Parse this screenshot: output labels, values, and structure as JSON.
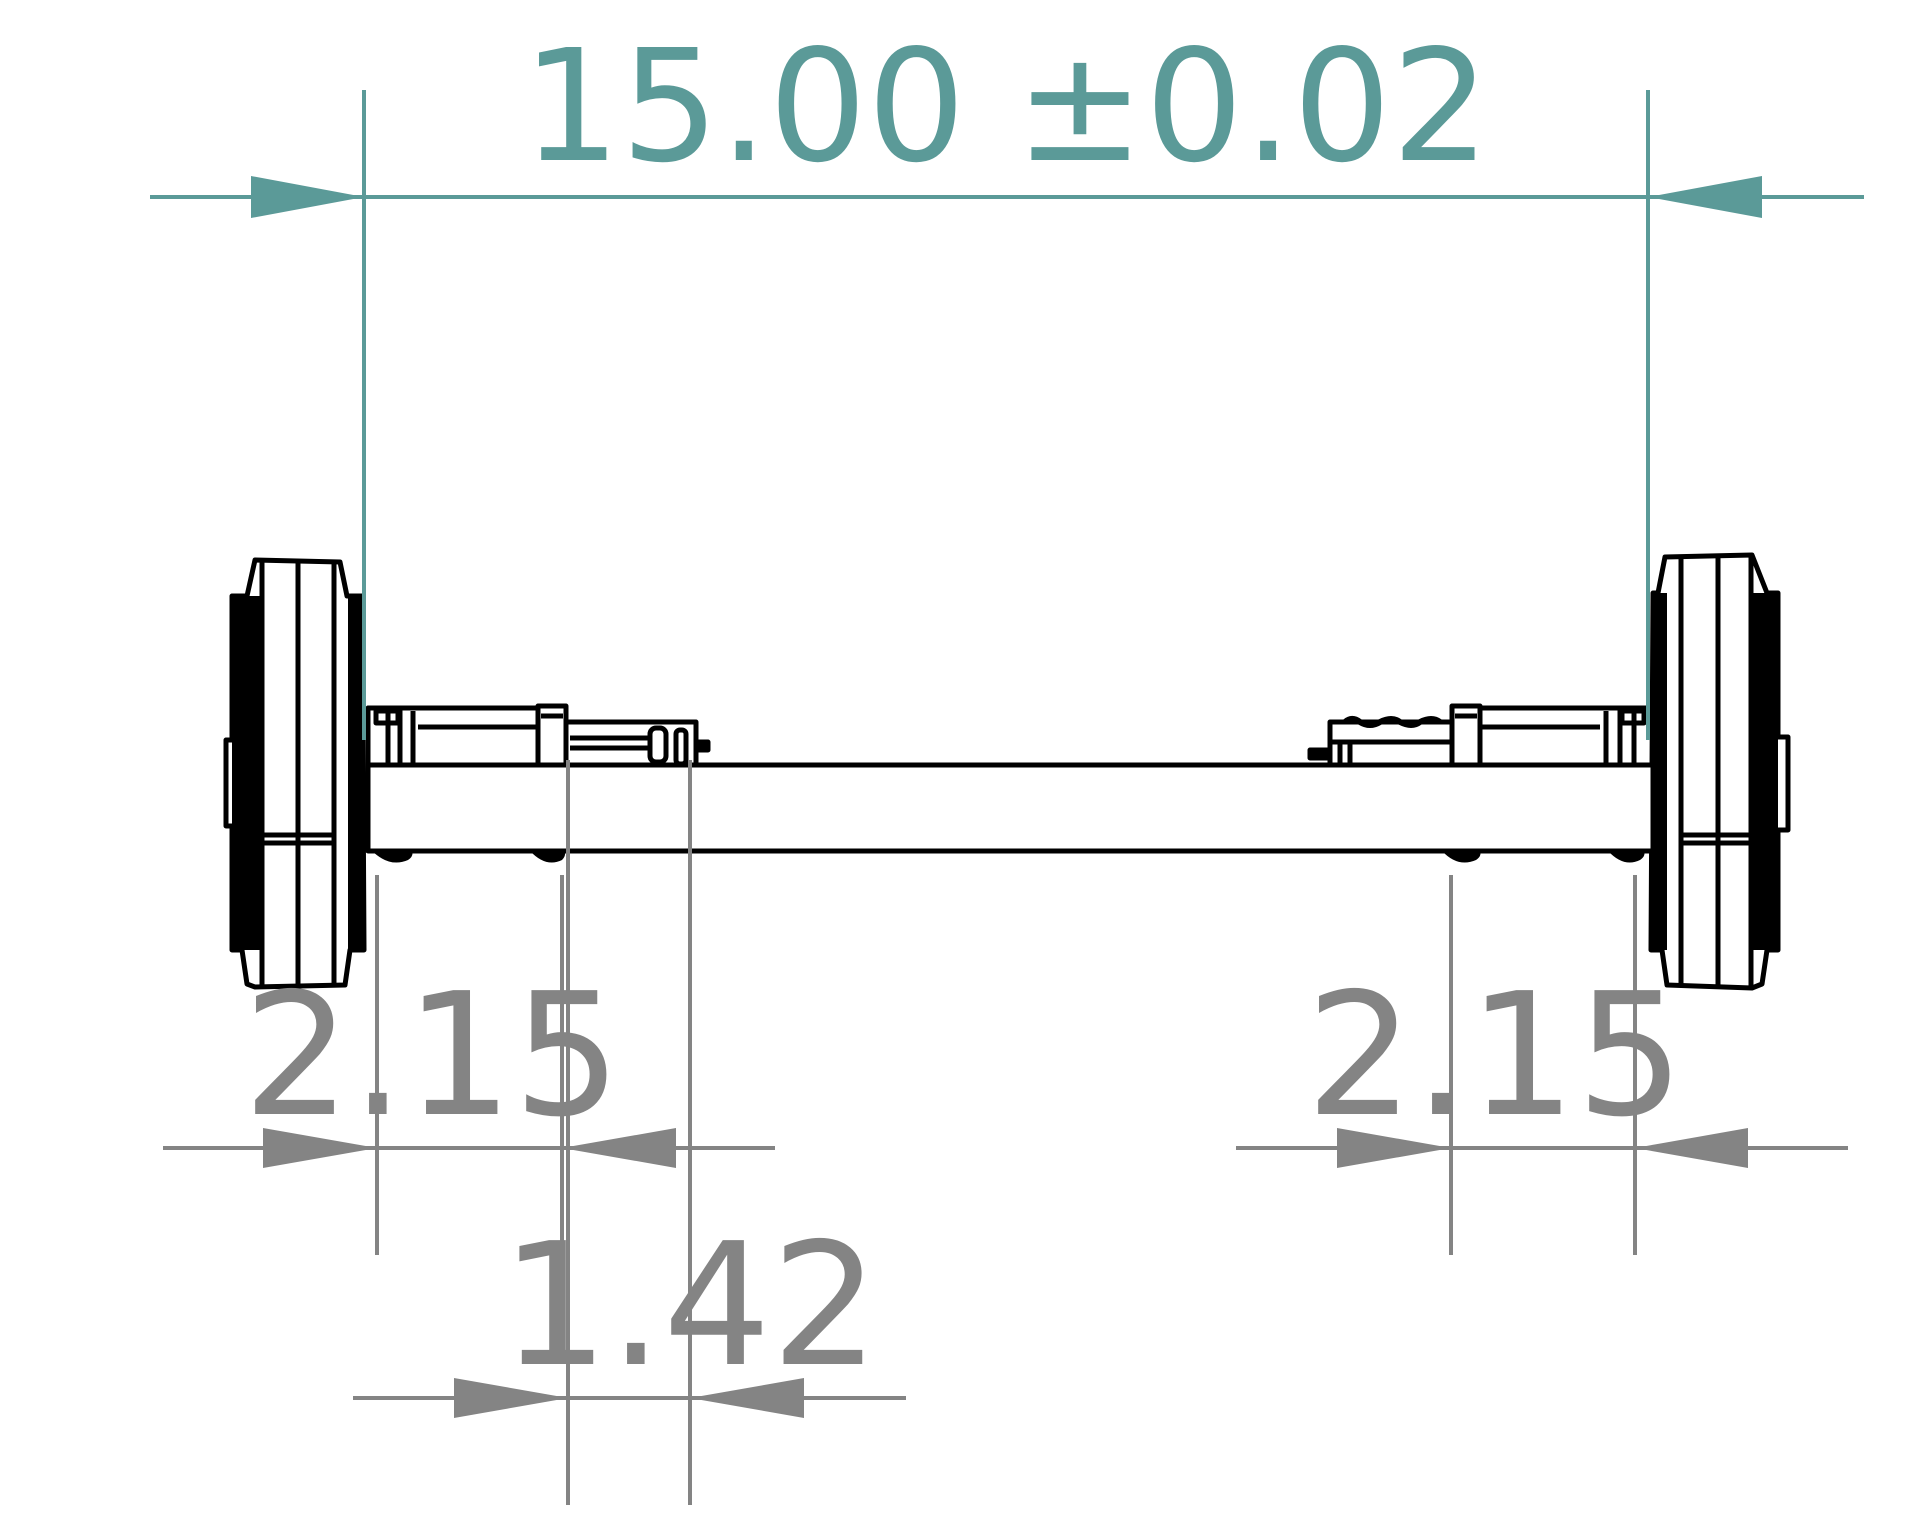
{
  "colors": {
    "primary_dimension": "#5b9a98",
    "secondary_dimension": "#848484",
    "geometry": "#000000",
    "background": "#ffffff"
  },
  "dimensions": {
    "overall": {
      "value": "15.00 ±0.02"
    },
    "left_offset": {
      "value": "2.15"
    },
    "right_offset": {
      "value": "2.15"
    },
    "hub_width": {
      "value": "1.42"
    }
  }
}
